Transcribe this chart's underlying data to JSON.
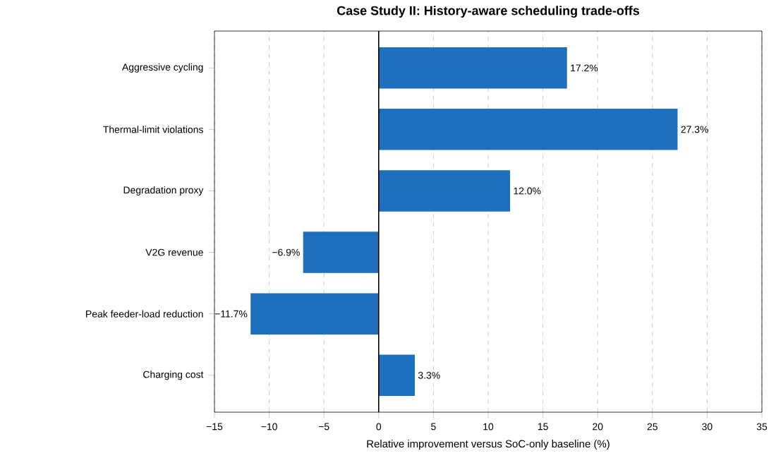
{
  "chart_data": {
    "type": "bar",
    "orientation": "horizontal",
    "title": "Case Study II: History-aware scheduling trade-offs",
    "xlabel": "Relative improvement versus SoC-only baseline (%)",
    "categories": [
      "Aggressive cycling",
      "Thermal-limit violations",
      "Degradation proxy",
      "V2G revenue",
      "Peak feeder-load reduction",
      "Charging cost"
    ],
    "values": [
      17.2,
      27.3,
      12.0,
      -6.9,
      -11.7,
      3.3
    ],
    "value_labels": [
      "17.2%",
      "27.3%",
      "12.0%",
      "−6.9%",
      "−11.7%",
      "3.3%"
    ],
    "color": "#1f6fbf",
    "xlim": [
      -15,
      35
    ],
    "xticks": [
      {
        "value": -15,
        "label": "−15"
      },
      {
        "value": -10,
        "label": "−10"
      },
      {
        "value": -5,
        "label": "−5"
      },
      0,
      5,
      10,
      15,
      20,
      25,
      30,
      35
    ],
    "grid": "x",
    "ref_lines": [
      {
        "axis": "x",
        "value": 0,
        "color": "#000000"
      }
    ]
  }
}
